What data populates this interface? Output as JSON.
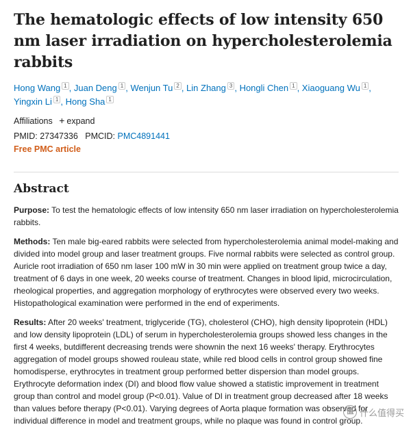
{
  "article": {
    "title": "The hematologic effects of low intensity 650 nm laser irradiation on hypercholesterolemia rabbits",
    "authors": [
      {
        "name": "Hong Wang",
        "aff": "1"
      },
      {
        "name": "Juan Deng",
        "aff": "1"
      },
      {
        "name": "Wenjun Tu",
        "aff": "2"
      },
      {
        "name": "Lin Zhang",
        "aff": "3"
      },
      {
        "name": "Hongli Chen",
        "aff": "1"
      },
      {
        "name": "Xiaoguang Wu",
        "aff": "1"
      },
      {
        "name": "Yingxin Li",
        "aff": "1"
      },
      {
        "name": "Hong Sha",
        "aff": "1"
      }
    ],
    "affiliations_label": "Affiliations",
    "expand_label": "expand",
    "pmid_label": "PMID:",
    "pmid": "27347336",
    "pmcid_label": "PMCID:",
    "pmcid": "PMC4891441",
    "free_label": "Free PMC article"
  },
  "abstract": {
    "heading": "Abstract",
    "sections": [
      {
        "label": "Purpose:",
        "text": "To test the hematologic effects of low intensity 650 nm laser irradiation on hypercholesterolemia rabbits."
      },
      {
        "label": "Methods:",
        "text": "Ten male big-eared rabbits were selected from hypercholesterolemia animal model-making and divided into model group and laser treatment groups. Five normal rabbits were selected as control group. Auricle root irradiation of 650 nm laser 100 mW in 30 min were applied on treatment group twice a day, treatment of 6 days in one week, 20 weeks course of treatment. Changes in blood lipid, microcirculation, rheological properties, and aggregation morphology of erythrocytes were observed every two weeks. Histopathological examination were performed in the end of experiments."
      },
      {
        "label": "Results:",
        "text": "After 20 weeks' treatment, triglyceride (TG), cholesterol (CHO), high density lipoprotein (HDL) and low density lipoprotein (LDL) of serum in hypercholesterolemia groups showed less changes in the first 4 weeks, butdifferent decreasing trends were shownin the next 16 weeks' therapy. Erythrocytes aggregation of model groups showed rouleau state, while red blood cells in control group showed fine homodisperse, erythrocytes in treatment group performed better dispersion than model groups. Erythrocyte deformation index (DI) and blood flow value showed a statistic improvement in treatment group than control and model group (P<0.01). Value of DI in treatment group decreased after 18 weeks than values before therapy (P<0.01). Varying degrees of Aorta plaque formation was observed for individual difference in model and treatment groups, while no plaque was found in control group."
      }
    ]
  },
  "watermark": {
    "icon": "值",
    "text": "什么值得买"
  }
}
